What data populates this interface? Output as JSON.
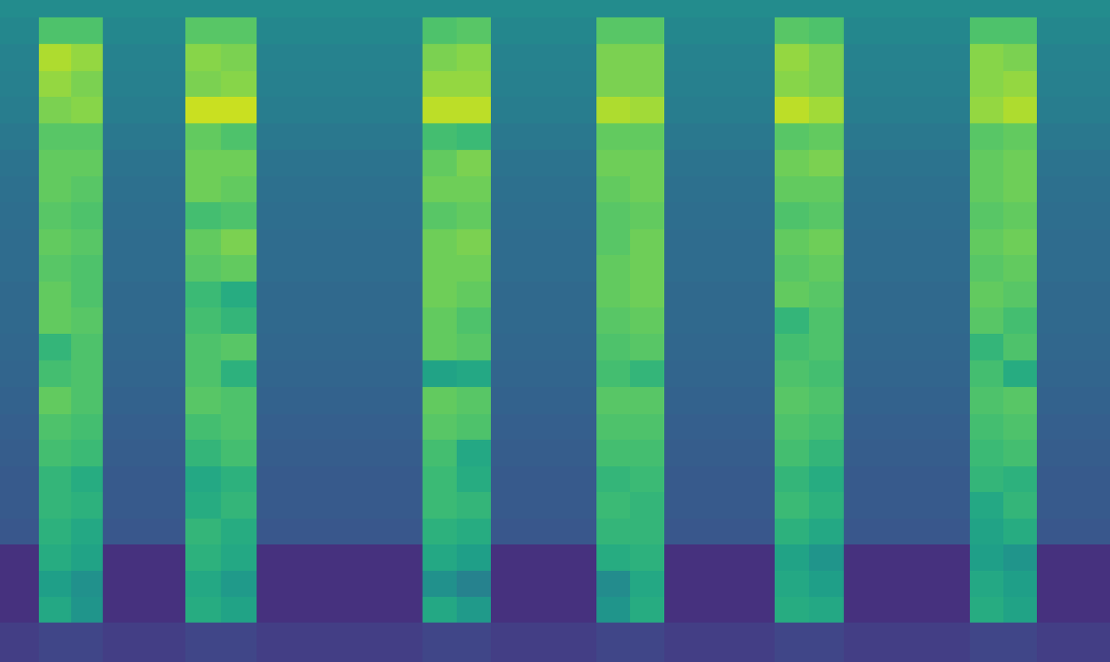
{
  "chart_data": {
    "type": "heatmap",
    "color": "Viridis",
    "tick_labels": false,
    "xlim": [
      0,
      1568
    ],
    "ylim": [
      0,
      936
    ],
    "zlim": [
      0,
      100
    ],
    "x": [
      0,
      55,
      100,
      145,
      262,
      312,
      362,
      597,
      645,
      694,
      842,
      890,
      938,
      1094,
      1143,
      1192,
      1370,
      1417,
      1465,
      1568
    ],
    "y": [
      0,
      56,
      92,
      129,
      166,
      203,
      240,
      277,
      314,
      351,
      389,
      426,
      464,
      501,
      538,
      575,
      612,
      650,
      687,
      724,
      762,
      799,
      836,
      874,
      911,
      936
    ],
    "z": [
      [
        18,
        21,
        21,
        18,
        21,
        21,
        18,
        21,
        21,
        18,
        21,
        21,
        18,
        21,
        21,
        18,
        21,
        21,
        18
      ],
      [
        14,
        60,
        52,
        14,
        62,
        58,
        14,
        60,
        54,
        14,
        52,
        62,
        14,
        62,
        60,
        14,
        62,
        58,
        14
      ],
      [
        14,
        56,
        50,
        14,
        60,
        54,
        14,
        50,
        44,
        14,
        48,
        60,
        14,
        60,
        56,
        14,
        60,
        56,
        14
      ],
      [
        14,
        62,
        58,
        14,
        64,
        60,
        14,
        60,
        56,
        14,
        62,
        64,
        14,
        58,
        52,
        14,
        56,
        52,
        14
      ],
      [
        27,
        64,
        60,
        27,
        66,
        62,
        27,
        64,
        62,
        27,
        66,
        66,
        27,
        64,
        60,
        27,
        58,
        62,
        27
      ],
      [
        28,
        66,
        64,
        28,
        62,
        66,
        28,
        68,
        66,
        28,
        68,
        66,
        28,
        68,
        64,
        28,
        60,
        66,
        28
      ],
      [
        28,
        66,
        62,
        28,
        60,
        64,
        28,
        68,
        62,
        28,
        66,
        68,
        28,
        66,
        62,
        28,
        66,
        64,
        28
      ],
      [
        29,
        70,
        68,
        29,
        66,
        70,
        29,
        70,
        60,
        29,
        70,
        70,
        29,
        70,
        66,
        29,
        68,
        70,
        29
      ],
      [
        30,
        72,
        70,
        30,
        70,
        72,
        30,
        74,
        72,
        30,
        72,
        72,
        30,
        72,
        70,
        30,
        70,
        72,
        30
      ],
      [
        31,
        76,
        72,
        31,
        74,
        72,
        31,
        76,
        74,
        31,
        74,
        74,
        31,
        74,
        72,
        31,
        72,
        74,
        31
      ],
      [
        32,
        70,
        72,
        32,
        72,
        64,
        32,
        58,
        60,
        32,
        70,
        66,
        32,
        72,
        70,
        32,
        70,
        62,
        32
      ],
      [
        33,
        66,
        72,
        33,
        72,
        74,
        33,
        76,
        74,
        33,
        72,
        74,
        33,
        70,
        72,
        33,
        66,
        72,
        33
      ],
      [
        34,
        76,
        74,
        34,
        70,
        66,
        34,
        76,
        72,
        34,
        74,
        76,
        34,
        66,
        72,
        34,
        74,
        70,
        34
      ],
      [
        34,
        76,
        72,
        34,
        68,
        62,
        34,
        78,
        76,
        34,
        76,
        78,
        34,
        76,
        74,
        34,
        76,
        74,
        34
      ],
      [
        35,
        74,
        72,
        35,
        74,
        76,
        35,
        78,
        78,
        35,
        76,
        78,
        35,
        74,
        76,
        35,
        74,
        76,
        35
      ],
      [
        35,
        76,
        74,
        35,
        76,
        80,
        35,
        78,
        80,
        35,
        74,
        78,
        35,
        76,
        78,
        35,
        76,
        78,
        35
      ],
      [
        36,
        74,
        72,
        36,
        70,
        72,
        36,
        74,
        76,
        36,
        74,
        76,
        36,
        72,
        74,
        36,
        74,
        76,
        36
      ],
      [
        37,
        76,
        74,
        37,
        78,
        76,
        37,
        78,
        78,
        37,
        76,
        78,
        37,
        76,
        76,
        37,
        76,
        78,
        37
      ],
      [
        38,
        76,
        76,
        38,
        78,
        78,
        38,
        76,
        80,
        38,
        78,
        78,
        38,
        78,
        80,
        38,
        76,
        78,
        38
      ],
      [
        40,
        74,
        74,
        40,
        76,
        72,
        40,
        70,
        68,
        40,
        76,
        76,
        40,
        74,
        76,
        40,
        74,
        76,
        40
      ],
      [
        42,
        80,
        82,
        42,
        92,
        92,
        42,
        90,
        90,
        42,
        88,
        86,
        42,
        90,
        86,
        42,
        84,
        88,
        42
      ],
      [
        43,
        84,
        80,
        43,
        80,
        82,
        43,
        84,
        84,
        43,
        80,
        80,
        43,
        82,
        80,
        43,
        82,
        84,
        43
      ],
      [
        44,
        88,
        84,
        44,
        82,
        80,
        44,
        80,
        82,
        44,
        80,
        80,
        44,
        84,
        80,
        44,
        82,
        80,
        44
      ],
      [
        46,
        72,
        72,
        46,
        74,
        74,
        46,
        72,
        74,
        46,
        74,
        74,
        46,
        74,
        72,
        46,
        72,
        72,
        46
      ],
      [
        48,
        48,
        48,
        48,
        48,
        48,
        48,
        48,
        48,
        48,
        48,
        48,
        48,
        48,
        48,
        48,
        48,
        48,
        48
      ]
    ]
  }
}
